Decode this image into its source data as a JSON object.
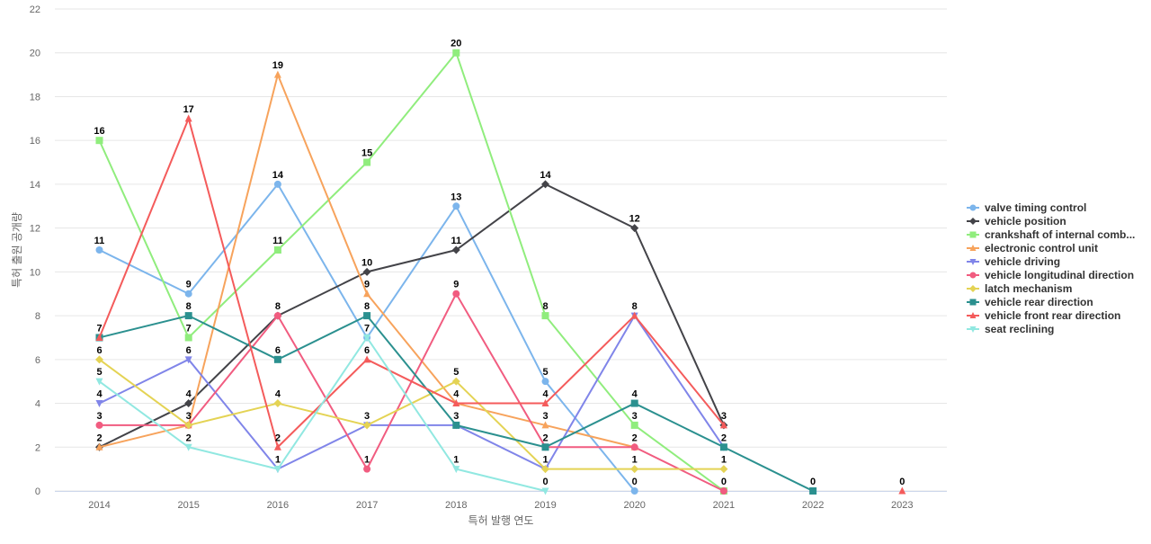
{
  "chart_data": {
    "type": "line",
    "title": "",
    "xlabel": "특허 발행 연도",
    "ylabel": "특허 출원 공개량",
    "x": [
      "2014",
      "2015",
      "2016",
      "2017",
      "2018",
      "2019",
      "2020",
      "2021",
      "2022",
      "2023"
    ],
    "ylim": [
      0,
      22
    ],
    "yticks": [
      0,
      2,
      4,
      6,
      8,
      10,
      12,
      14,
      16,
      18,
      20,
      22
    ],
    "grid": true,
    "legend_position": "right",
    "series": [
      {
        "name": "valve timing control",
        "color": "#7cb5ec",
        "marker": "circle",
        "values": [
          11,
          9,
          14,
          7,
          13,
          5,
          0,
          null,
          null,
          null
        ]
      },
      {
        "name": "vehicle position",
        "color": "#434348",
        "marker": "diamond",
        "values": [
          2,
          4,
          8,
          10,
          11,
          14,
          12,
          3,
          null,
          null
        ]
      },
      {
        "name": "crankshaft of internal comb...",
        "color": "#90ed7d",
        "marker": "square",
        "values": [
          16,
          7,
          11,
          15,
          20,
          8,
          3,
          0,
          null,
          null
        ]
      },
      {
        "name": "electronic control unit",
        "color": "#f7a35c",
        "marker": "triangle",
        "values": [
          2,
          3,
          19,
          9,
          4,
          3,
          2,
          null,
          null,
          null
        ]
      },
      {
        "name": "vehicle driving",
        "color": "#8085e9",
        "marker": "triangle-down",
        "values": [
          4,
          6,
          1,
          3,
          3,
          1,
          8,
          2,
          null,
          null
        ]
      },
      {
        "name": "vehicle longitudinal direction",
        "color": "#f15c80",
        "marker": "circle",
        "values": [
          3,
          3,
          8,
          1,
          9,
          2,
          2,
          0,
          null,
          null
        ]
      },
      {
        "name": "latch mechanism",
        "color": "#e4d354",
        "marker": "diamond",
        "values": [
          6,
          3,
          4,
          3,
          5,
          1,
          1,
          1,
          null,
          null
        ]
      },
      {
        "name": "vehicle rear direction",
        "color": "#2b908f",
        "marker": "square",
        "values": [
          7,
          8,
          6,
          8,
          3,
          2,
          4,
          2,
          0,
          null
        ]
      },
      {
        "name": "vehicle front rear direction",
        "color": "#f45b5b",
        "marker": "triangle",
        "values": [
          7,
          17,
          2,
          6,
          4,
          4,
          8,
          3,
          null,
          0
        ]
      },
      {
        "name": "seat reclining",
        "color": "#91e8e1",
        "marker": "triangle-down",
        "values": [
          5,
          2,
          1,
          7,
          1,
          0,
          null,
          null,
          null,
          null
        ]
      }
    ],
    "data_labels": [
      {
        "x": "2014",
        "value": 16
      },
      {
        "x": "2014",
        "value": 11
      },
      {
        "x": "2014",
        "value": 7
      },
      {
        "x": "2014",
        "value": 6
      },
      {
        "x": "2014",
        "value": 5
      },
      {
        "x": "2014",
        "value": 4
      },
      {
        "x": "2014",
        "value": 3
      },
      {
        "x": "2014",
        "value": 2
      },
      {
        "x": "2015",
        "value": 17
      },
      {
        "x": "2015",
        "value": 9
      },
      {
        "x": "2015",
        "value": 8
      },
      {
        "x": "2015",
        "value": 7
      },
      {
        "x": "2015",
        "value": 6
      },
      {
        "x": "2015",
        "value": 4
      },
      {
        "x": "2015",
        "value": 3
      },
      {
        "x": "2015",
        "value": 2
      },
      {
        "x": "2016",
        "value": 19
      },
      {
        "x": "2016",
        "value": 14
      },
      {
        "x": "2016",
        "value": 11
      },
      {
        "x": "2016",
        "value": 8
      },
      {
        "x": "2016",
        "value": 6
      },
      {
        "x": "2016",
        "value": 4
      },
      {
        "x": "2016",
        "value": 2
      },
      {
        "x": "2016",
        "value": 1
      },
      {
        "x": "2017",
        "value": 15
      },
      {
        "x": "2017",
        "value": 10
      },
      {
        "x": "2017",
        "value": 9
      },
      {
        "x": "2017",
        "value": 8
      },
      {
        "x": "2017",
        "value": 7
      },
      {
        "x": "2017",
        "value": 6
      },
      {
        "x": "2017",
        "value": 3
      },
      {
        "x": "2017",
        "value": 1
      },
      {
        "x": "2018",
        "value": 20
      },
      {
        "x": "2018",
        "value": 13
      },
      {
        "x": "2018",
        "value": 11
      },
      {
        "x": "2018",
        "value": 9
      },
      {
        "x": "2018",
        "value": 5
      },
      {
        "x": "2018",
        "value": 4
      },
      {
        "x": "2018",
        "value": 3
      },
      {
        "x": "2018",
        "value": 1
      },
      {
        "x": "2019",
        "value": 14
      },
      {
        "x": "2019",
        "value": 8
      },
      {
        "x": "2019",
        "value": 5
      },
      {
        "x": "2019",
        "value": 4
      },
      {
        "x": "2019",
        "value": 3
      },
      {
        "x": "2019",
        "value": 2
      },
      {
        "x": "2019",
        "value": 1
      },
      {
        "x": "2019",
        "value": 0
      },
      {
        "x": "2020",
        "value": 12
      },
      {
        "x": "2020",
        "value": 8
      },
      {
        "x": "2020",
        "value": 4
      },
      {
        "x": "2020",
        "value": 3
      },
      {
        "x": "2020",
        "value": 2
      },
      {
        "x": "2020",
        "value": 1
      },
      {
        "x": "2020",
        "value": 0
      },
      {
        "x": "2021",
        "value": 3
      },
      {
        "x": "2021",
        "value": 2
      },
      {
        "x": "2021",
        "value": 1
      },
      {
        "x": "2021",
        "value": 0
      },
      {
        "x": "2022",
        "value": 0
      },
      {
        "x": "2023",
        "value": 0
      }
    ]
  }
}
